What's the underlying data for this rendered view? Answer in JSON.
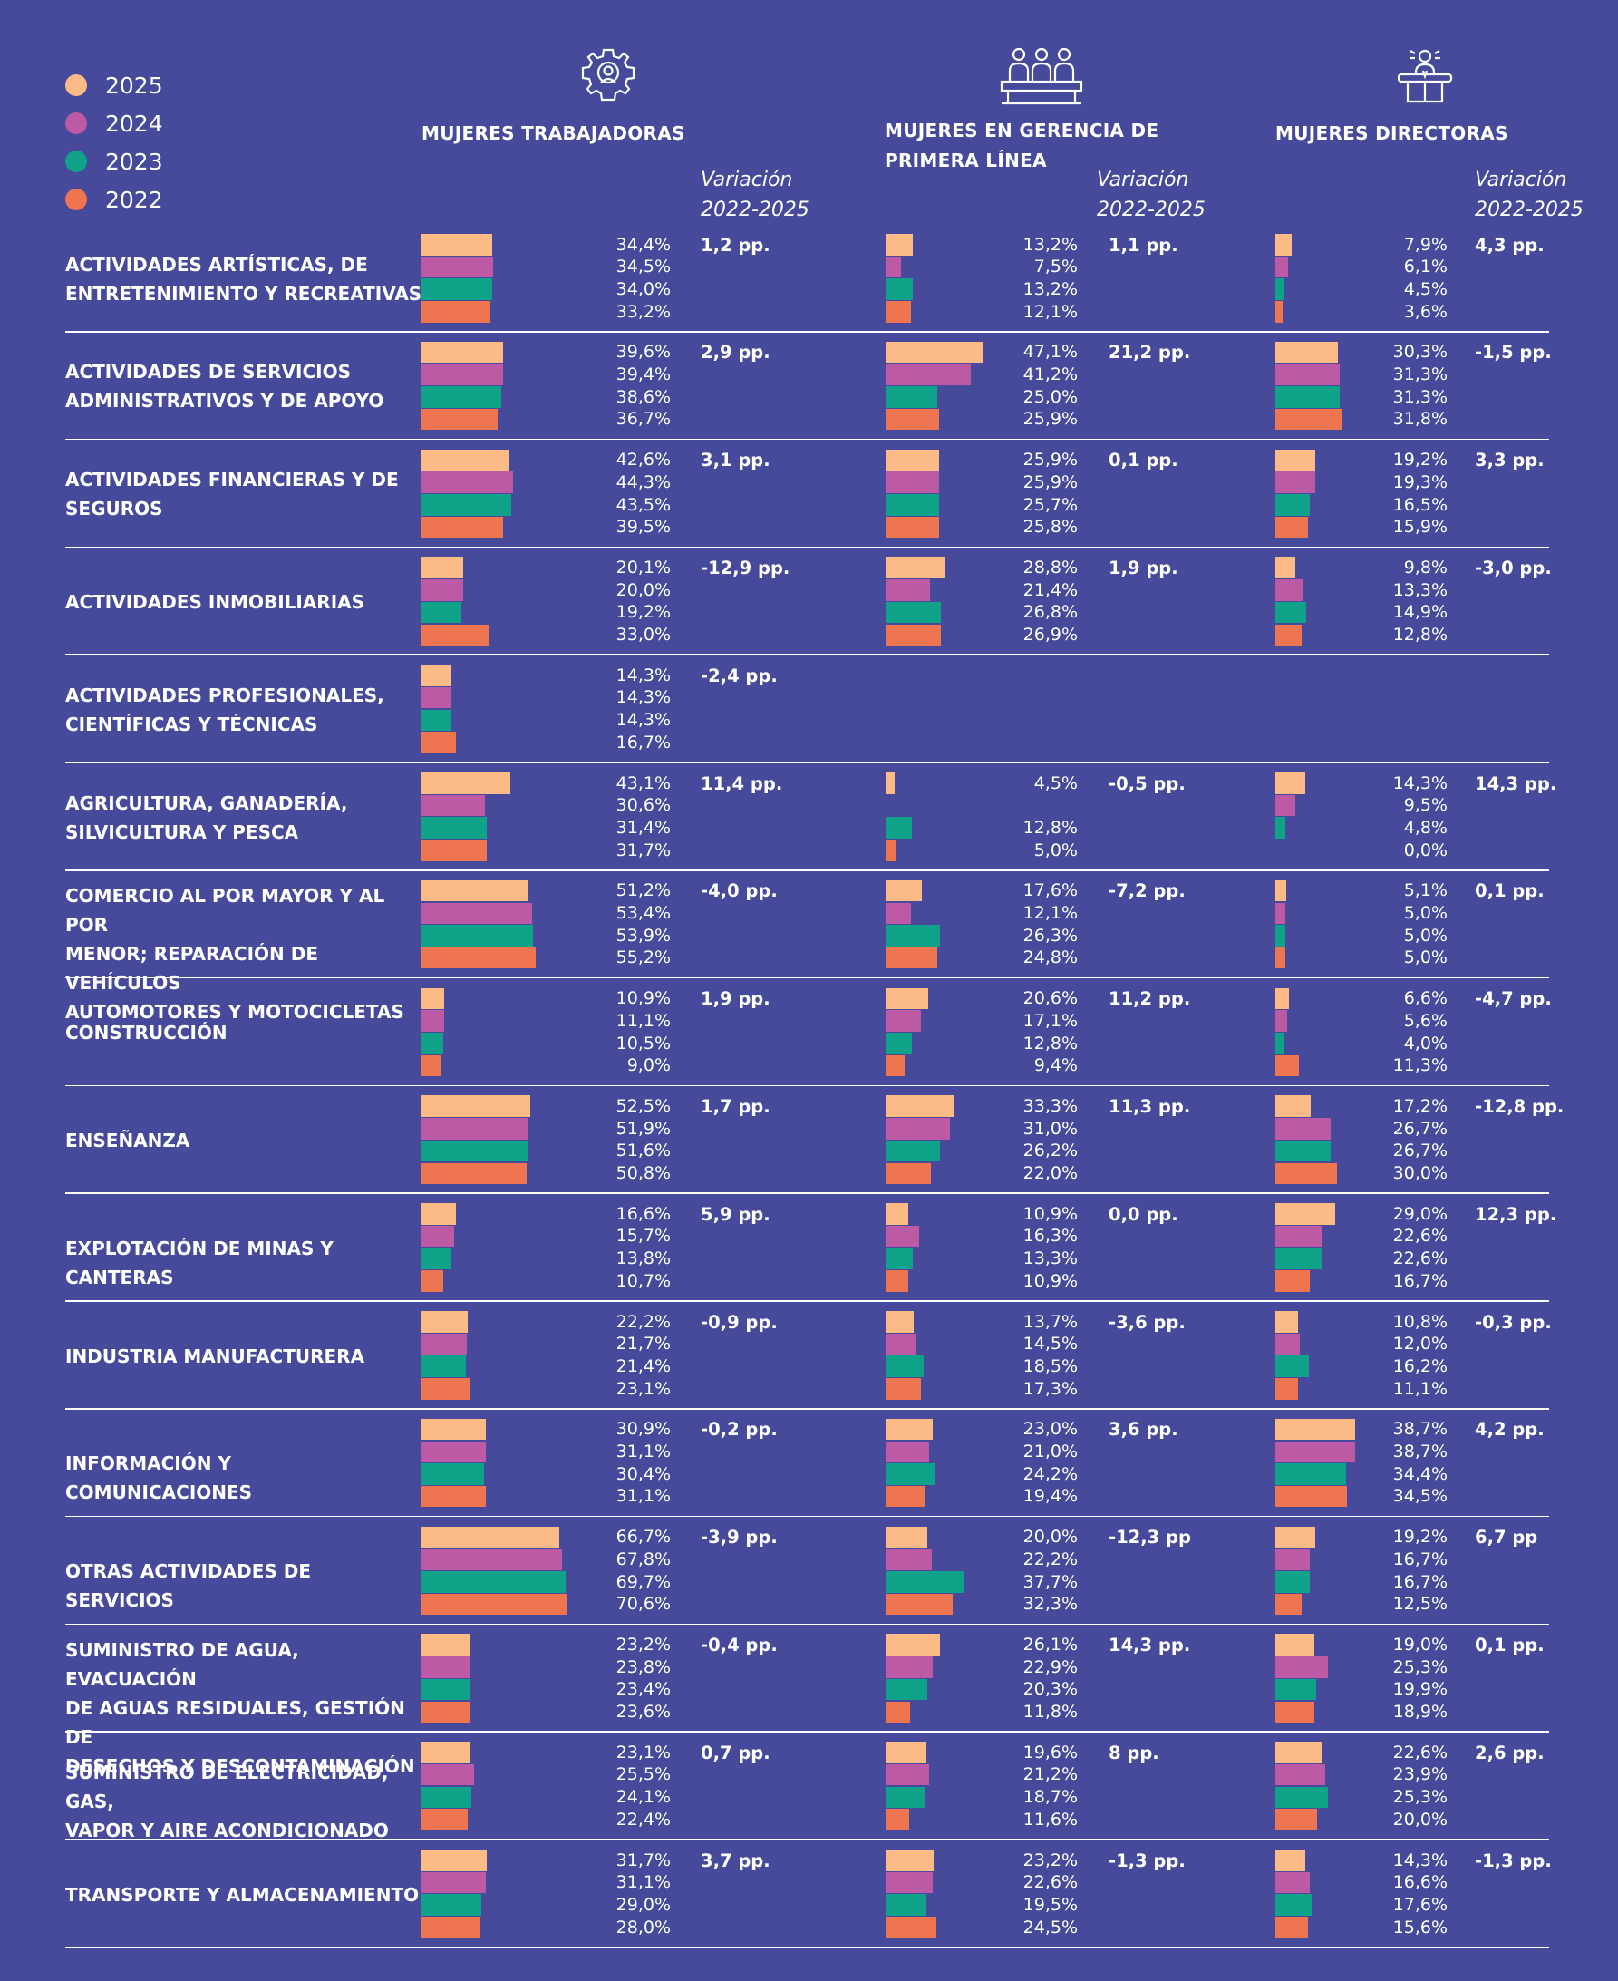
{
  "legend": [
    {
      "label": "2025",
      "color": "#fbba86"
    },
    {
      "label": "2024",
      "color": "#bd5aa6"
    },
    {
      "label": "2023",
      "color": "#10a38a"
    },
    {
      "label": "2022",
      "color": "#ee754f"
    }
  ],
  "columns": {
    "workers": {
      "title_lines": [
        "MUJERES TRABAJADORAS"
      ],
      "icon": "gear-person-icon"
    },
    "management": {
      "title_lines": [
        "MUJERES EN GERENCIA DE",
        "PRIMERA LÍNEA"
      ],
      "icon": "managers-group-icon"
    },
    "directors": {
      "title_lines": [
        "MUJERES DIRECTORAS"
      ],
      "icon": "director-podium-icon"
    }
  },
  "variation_header": [
    "Variación",
    "2022-2025"
  ],
  "chart_data": {
    "type": "bar",
    "orientation": "horizontal",
    "series_names": [
      "2025",
      "2024",
      "2023",
      "2022"
    ],
    "unit": "%",
    "rows": [
      {
        "sector": [
          "ACTIVIDADES ARTÍSTICAS, DE",
          "ENTRETENIMIENTO Y RECREATIVAS"
        ],
        "workers": {
          "values": [
            34.4,
            34.5,
            34.0,
            33.2
          ],
          "labels": [
            "34,4%",
            "34,5%",
            "34,0%",
            "33,2%"
          ],
          "variation": "1,2 pp."
        },
        "management": {
          "values": [
            13.2,
            7.5,
            13.2,
            12.1
          ],
          "labels": [
            "13,2%",
            "7,5%",
            "13,2%",
            "12,1%"
          ],
          "variation": "1,1 pp."
        },
        "directors": {
          "values": [
            7.9,
            6.1,
            4.5,
            3.6
          ],
          "labels": [
            "7,9%",
            "6,1%",
            "4,5%",
            "3,6%"
          ],
          "variation": "4,3 pp."
        }
      },
      {
        "sector": [
          "ACTIVIDADES DE SERVICIOS",
          "ADMINISTRATIVOS Y DE APOYO"
        ],
        "workers": {
          "values": [
            39.6,
            39.4,
            38.6,
            36.7
          ],
          "labels": [
            "39,6%",
            "39,4%",
            "38,6%",
            "36,7%"
          ],
          "variation": "2,9 pp."
        },
        "management": {
          "values": [
            47.1,
            41.2,
            25.0,
            25.9
          ],
          "labels": [
            "47,1%",
            "41,2%",
            "25,0%",
            "25,9%"
          ],
          "variation": "21,2 pp."
        },
        "directors": {
          "values": [
            30.3,
            31.3,
            31.3,
            31.8
          ],
          "labels": [
            "30,3%",
            "31,3%",
            "31,3%",
            "31,8%"
          ],
          "variation": "-1,5 pp."
        }
      },
      {
        "sector": [
          "ACTIVIDADES FINANCIERAS Y DE",
          "SEGUROS"
        ],
        "workers": {
          "values": [
            42.6,
            44.3,
            43.5,
            39.5
          ],
          "labels": [
            "42,6%",
            "44,3%",
            "43,5%",
            "39,5%"
          ],
          "variation": "3,1 pp."
        },
        "management": {
          "values": [
            25.9,
            25.9,
            25.7,
            25.8
          ],
          "labels": [
            "25,9%",
            "25,9%",
            "25,7%",
            "25,8%"
          ],
          "variation": "0,1 pp."
        },
        "directors": {
          "values": [
            19.2,
            19.3,
            16.5,
            15.9
          ],
          "labels": [
            "19,2%",
            "19,3%",
            "16,5%",
            "15,9%"
          ],
          "variation": "3,3 pp."
        }
      },
      {
        "sector": [
          "ACTIVIDADES INMOBILIARIAS"
        ],
        "workers": {
          "values": [
            20.1,
            20.0,
            19.2,
            33.0
          ],
          "labels": [
            "20,1%",
            "20,0%",
            "19,2%",
            "33,0%"
          ],
          "variation": "-12,9 pp."
        },
        "management": {
          "values": [
            28.8,
            21.4,
            26.8,
            26.9
          ],
          "labels": [
            "28,8%",
            "21,4%",
            "26,8%",
            "26,9%"
          ],
          "variation": "1,9 pp."
        },
        "directors": {
          "values": [
            9.8,
            13.3,
            14.9,
            12.8
          ],
          "labels": [
            "9,8%",
            "13,3%",
            "14,9%",
            "12,8%"
          ],
          "variation": "-3,0 pp."
        }
      },
      {
        "sector": [
          "ACTIVIDADES PROFESIONALES,",
          "CIENTÍFICAS Y TÉCNICAS"
        ],
        "workers": {
          "values": [
            14.3,
            14.3,
            14.3,
            16.7
          ],
          "labels": [
            "14,3%",
            "14,3%",
            "14,3%",
            "16,7%"
          ],
          "variation": "-2,4 pp."
        },
        "management": null,
        "directors": null
      },
      {
        "sector": [
          "AGRICULTURA, GANADERÍA,",
          "SILVICULTURA Y PESCA"
        ],
        "workers": {
          "values": [
            43.1,
            30.6,
            31.4,
            31.7
          ],
          "labels": [
            "43,1%",
            "30,6%",
            "31,4%",
            "31,7%"
          ],
          "variation": "11,4 pp."
        },
        "management": {
          "values": [
            4.5,
            null,
            12.8,
            5.0
          ],
          "labels": [
            "4,5%",
            "",
            "12,8%",
            "5,0%"
          ],
          "variation": "-0,5 pp."
        },
        "directors": {
          "values": [
            14.3,
            9.5,
            4.8,
            0.0
          ],
          "labels": [
            "14,3%",
            "9,5%",
            "4,8%",
            "0,0%"
          ],
          "variation": "14,3 pp."
        }
      },
      {
        "sector": [
          "COMERCIO AL POR MAYOR Y AL POR",
          "MENOR; REPARACIÓN DE VEHÍCULOS",
          "AUTOMOTORES Y MOTOCICLETAS"
        ],
        "workers": {
          "values": [
            51.2,
            53.4,
            53.9,
            55.2
          ],
          "labels": [
            "51,2%",
            "53,4%",
            "53,9%",
            "55,2%"
          ],
          "variation": "-4,0 pp."
        },
        "management": {
          "values": [
            17.6,
            12.1,
            26.3,
            24.8
          ],
          "labels": [
            "17,6%",
            "12,1%",
            "26,3%",
            "24,8%"
          ],
          "variation": "-7,2 pp."
        },
        "directors": {
          "values": [
            5.1,
            5.0,
            5.0,
            5.0
          ],
          "labels": [
            "5,1%",
            "5,0%",
            "5,0%",
            "5,0%"
          ],
          "variation": "0,1 pp."
        }
      },
      {
        "sector": [
          "CONSTRUCCIÓN"
        ],
        "workers": {
          "values": [
            10.9,
            11.1,
            10.5,
            9.0
          ],
          "labels": [
            "10,9%",
            "11,1%",
            "10,5%",
            "9,0%"
          ],
          "variation": "1,9 pp."
        },
        "management": {
          "values": [
            20.6,
            17.1,
            12.8,
            9.4
          ],
          "labels": [
            "20,6%",
            "17,1%",
            "12,8%",
            "9,4%"
          ],
          "variation": "11,2 pp."
        },
        "directors": {
          "values": [
            6.6,
            5.6,
            4.0,
            11.3
          ],
          "labels": [
            "6,6%",
            "5,6%",
            "4,0%",
            "11,3%"
          ],
          "variation": "-4,7 pp."
        }
      },
      {
        "sector": [
          "ENSEÑANZA"
        ],
        "workers": {
          "values": [
            52.5,
            51.9,
            51.6,
            50.8
          ],
          "labels": [
            "52,5%",
            "51,9%",
            "51,6%",
            "50,8%"
          ],
          "variation": "1,7 pp."
        },
        "management": {
          "values": [
            33.3,
            31.0,
            26.2,
            22.0
          ],
          "labels": [
            "33,3%",
            "31,0%",
            "26,2%",
            "22,0%"
          ],
          "variation": "11,3 pp."
        },
        "directors": {
          "values": [
            17.2,
            26.7,
            26.7,
            30.0
          ],
          "labels": [
            "17,2%",
            "26,7%",
            "26,7%",
            "30,0%"
          ],
          "variation": "-12,8 pp."
        }
      },
      {
        "sector": [
          "EXPLOTACIÓN DE MINAS Y CANTERAS"
        ],
        "workers": {
          "values": [
            16.6,
            15.7,
            13.8,
            10.7
          ],
          "labels": [
            "16,6%",
            "15,7%",
            "13,8%",
            "10,7%"
          ],
          "variation": "5,9 pp."
        },
        "management": {
          "values": [
            10.9,
            16.3,
            13.3,
            10.9
          ],
          "labels": [
            "10,9%",
            "16,3%",
            "13,3%",
            "10,9%"
          ],
          "variation": "0,0 pp."
        },
        "directors": {
          "values": [
            29.0,
            22.6,
            22.6,
            16.7
          ],
          "labels": [
            "29,0%",
            "22,6%",
            "22,6%",
            "16,7%"
          ],
          "variation": "12,3 pp."
        }
      },
      {
        "sector": [
          "INDUSTRIA MANUFACTURERA"
        ],
        "workers": {
          "values": [
            22.2,
            21.7,
            21.4,
            23.1
          ],
          "labels": [
            "22,2%",
            "21,7%",
            "21,4%",
            "23,1%"
          ],
          "variation": "-0,9 pp."
        },
        "management": {
          "values": [
            13.7,
            14.5,
            18.5,
            17.3
          ],
          "labels": [
            "13,7%",
            "14,5%",
            "18,5%",
            "17,3%"
          ],
          "variation": "-3,6 pp."
        },
        "directors": {
          "values": [
            10.8,
            12.0,
            16.2,
            11.1
          ],
          "labels": [
            "10,8%",
            "12,0%",
            "16,2%",
            "11,1%"
          ],
          "variation": "-0,3 pp."
        }
      },
      {
        "sector": [
          "INFORMACIÓN Y COMUNICACIONES"
        ],
        "workers": {
          "values": [
            30.9,
            31.1,
            30.4,
            31.1
          ],
          "labels": [
            "30,9%",
            "31,1%",
            "30,4%",
            "31,1%"
          ],
          "variation": "-0,2 pp."
        },
        "management": {
          "values": [
            23.0,
            21.0,
            24.2,
            19.4
          ],
          "labels": [
            "23,0%",
            "21,0%",
            "24,2%",
            "19,4%"
          ],
          "variation": "3,6 pp."
        },
        "directors": {
          "values": [
            38.7,
            38.7,
            34.4,
            34.5
          ],
          "labels": [
            "38,7%",
            "38,7%",
            "34,4%",
            "34,5%"
          ],
          "variation": "4,2 pp."
        }
      },
      {
        "sector": [
          "OTRAS ACTIVIDADES DE SERVICIOS"
        ],
        "workers": {
          "values": [
            66.7,
            67.8,
            69.7,
            70.6
          ],
          "labels": [
            "66,7%",
            "67,8%",
            "69,7%",
            "70,6%"
          ],
          "variation": "-3,9 pp."
        },
        "management": {
          "values": [
            20.0,
            22.2,
            37.7,
            32.3
          ],
          "labels": [
            "20,0%",
            "22,2%",
            "37,7%",
            "32,3%"
          ],
          "variation": "-12,3 pp"
        },
        "directors": {
          "values": [
            19.2,
            16.7,
            16.7,
            12.5
          ],
          "labels": [
            "19,2%",
            "16,7%",
            "16,7%",
            "12,5%"
          ],
          "variation": "6,7 pp"
        }
      },
      {
        "sector": [
          "SUMINISTRO DE AGUA, EVACUACIÓN",
          "DE AGUAS RESIDUALES, GESTIÓN DE",
          "DESECHOS Y DESCONTAMINACIÓN"
        ],
        "workers": {
          "values": [
            23.2,
            23.8,
            23.4,
            23.6
          ],
          "labels": [
            "23,2%",
            "23,8%",
            "23,4%",
            "23,6%"
          ],
          "variation": "-0,4 pp."
        },
        "management": {
          "values": [
            26.1,
            22.9,
            20.3,
            11.8
          ],
          "labels": [
            "26,1%",
            "22,9%",
            "20,3%",
            "11,8%"
          ],
          "variation": "14,3 pp."
        },
        "directors": {
          "values": [
            19.0,
            25.3,
            19.9,
            18.9
          ],
          "labels": [
            "19,0%",
            "25,3%",
            "19,9%",
            "18,9%"
          ],
          "variation": "0,1 pp."
        }
      },
      {
        "sector": [
          "SUMINISTRO DE ELECTRICIDAD, GAS,",
          "VAPOR Y AIRE ACONDICIONADO"
        ],
        "workers": {
          "values": [
            23.1,
            25.5,
            24.1,
            22.4
          ],
          "labels": [
            "23,1%",
            "25,5%",
            "24,1%",
            "22,4%"
          ],
          "variation": "0,7 pp."
        },
        "management": {
          "values": [
            19.6,
            21.2,
            18.7,
            11.6
          ],
          "labels": [
            "19,6%",
            "21,2%",
            "18,7%",
            "11,6%"
          ],
          "variation": "8 pp."
        },
        "directors": {
          "values": [
            22.6,
            23.9,
            25.3,
            20.0
          ],
          "labels": [
            "22,6%",
            "23,9%",
            "25,3%",
            "20,0%"
          ],
          "variation": "2,6 pp."
        }
      },
      {
        "sector": [
          "TRANSPORTE Y ALMACENAMIENTO"
        ],
        "workers": {
          "values": [
            31.7,
            31.1,
            29.0,
            28.0
          ],
          "labels": [
            "31,7%",
            "31,1%",
            "29,0%",
            "28,0%"
          ],
          "variation": "3,7 pp."
        },
        "management": {
          "values": [
            23.2,
            22.6,
            19.5,
            24.5
          ],
          "labels": [
            "23,2%",
            "22,6%",
            "19,5%",
            "24,5%"
          ],
          "variation": "-1,3 pp."
        },
        "directors": {
          "values": [
            14.3,
            16.6,
            17.6,
            15.6
          ],
          "labels": [
            "14,3%",
            "16,6%",
            "17,6%",
            "15,6%"
          ],
          "variation": "-1,3 pp."
        }
      }
    ]
  }
}
